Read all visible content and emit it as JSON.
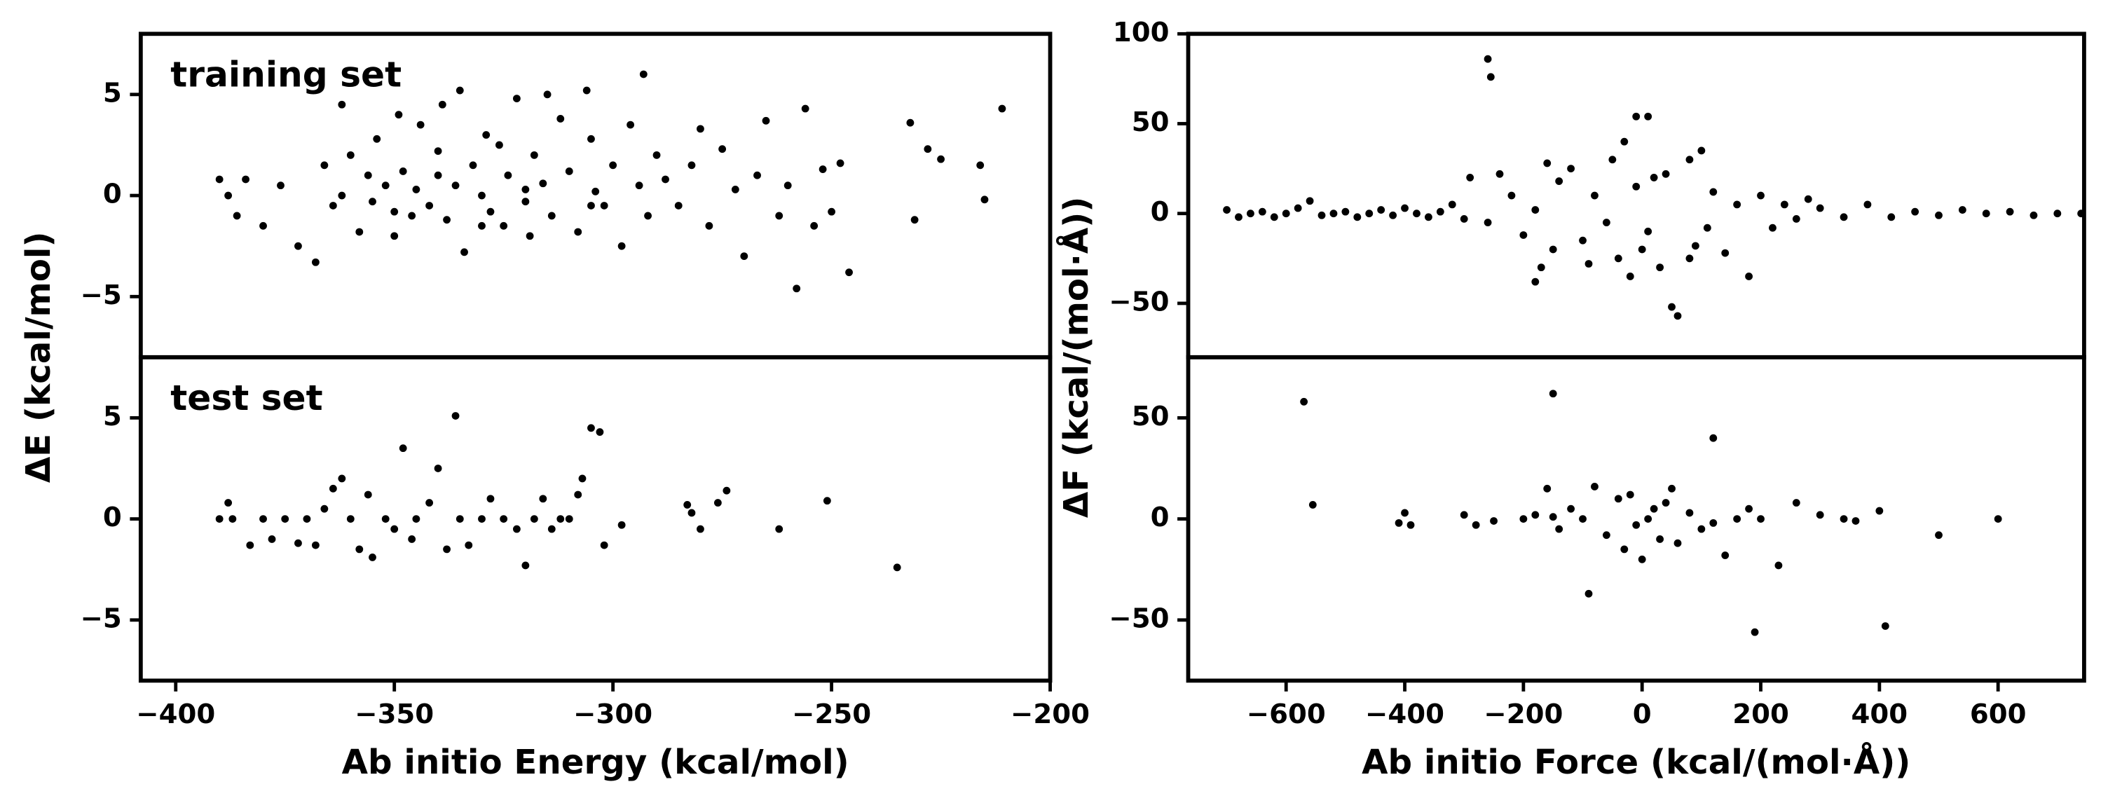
{
  "chart_data": [
    {
      "type": "scatter",
      "annotation": "training set",
      "ylabel": "ΔE (kcal/mol)",
      "xlim": [
        -408,
        -200
      ],
      "ylim": [
        -8,
        8
      ],
      "yticks": [
        5,
        0,
        {
          "value": -5,
          "label": "−5"
        }
      ],
      "color": "#000000",
      "x": [
        -390,
        -388,
        -386,
        -384,
        -380,
        -376,
        -372,
        -368,
        -366,
        -364,
        -362,
        -360,
        -358,
        -356,
        -355,
        -354,
        -352,
        -350,
        -349,
        -348,
        -346,
        -345,
        -344,
        -342,
        -340,
        -339,
        -338,
        -336,
        -335,
        -334,
        -332,
        -330,
        -329,
        -328,
        -326,
        -325,
        -324,
        -322,
        -320,
        -319,
        -318,
        -316,
        -315,
        -314,
        -312,
        -310,
        -308,
        -306,
        -305,
        -304,
        -302,
        -300,
        -298,
        -296,
        -294,
        -292,
        -290,
        -288,
        -285,
        -282,
        -280,
        -278,
        -275,
        -272,
        -270,
        -267,
        -265,
        -262,
        -260,
        -258,
        -256,
        -254,
        -252,
        -250,
        -248,
        -246,
        -232,
        -231,
        -228,
        -225,
        -216,
        -215,
        -211,
        -362,
        -350,
        -340,
        -330,
        -320,
        -305,
        -293
      ],
      "y": [
        0.8,
        0,
        -1,
        0.8,
        -1.5,
        0.5,
        -2.5,
        -3.3,
        1.5,
        -0.5,
        4.5,
        2,
        -1.8,
        1,
        -0.3,
        2.8,
        0.5,
        -2,
        4,
        1.2,
        -1,
        0.3,
        3.5,
        -0.5,
        2.2,
        4.5,
        -1.2,
        0.5,
        5.2,
        -2.8,
        1.5,
        0,
        3,
        -0.8,
        2.5,
        -1.5,
        1,
        4.8,
        -0.3,
        -2,
        2,
        0.6,
        5,
        -1,
        3.8,
        1.2,
        -1.8,
        5.2,
        2.8,
        0.2,
        -0.5,
        1.5,
        -2.5,
        3.5,
        0.5,
        -1,
        2,
        0.8,
        -0.5,
        1.5,
        3.3,
        -1.5,
        2.3,
        0.3,
        -3,
        1,
        3.7,
        -1,
        0.5,
        -4.6,
        4.3,
        -1.5,
        1.3,
        -0.8,
        1.6,
        -3.8,
        3.6,
        -1.2,
        2.3,
        1.8,
        1.5,
        -0.2,
        4.3,
        0,
        -0.8,
        1,
        -1.5,
        0.3,
        -0.5,
        6
      ]
    },
    {
      "type": "scatter",
      "annotation": "test set",
      "xlabel": "Ab initio Energy (kcal/mol)",
      "xlim": [
        -408,
        -200
      ],
      "ylim": [
        -8,
        8
      ],
      "xticks": [
        {
          "value": -400,
          "label": "−400"
        },
        {
          "value": -350,
          "label": "−350"
        },
        {
          "value": -300,
          "label": "−300"
        },
        {
          "value": -250,
          "label": "−250"
        },
        {
          "value": -200,
          "label": "−200"
        }
      ],
      "yticks": [
        5,
        0,
        {
          "value": -5,
          "label": "−5"
        }
      ],
      "color": "#000000",
      "x": [
        -390,
        -388,
        -387,
        -383,
        -380,
        -378,
        -375,
        -372,
        -370,
        -368,
        -366,
        -364,
        -362,
        -360,
        -358,
        -356,
        -355,
        -352,
        -350,
        -348,
        -346,
        -345,
        -342,
        -340,
        -338,
        -336,
        -335,
        -333,
        -330,
        -328,
        -325,
        -322,
        -320,
        -318,
        -316,
        -314,
        -312,
        -310,
        -308,
        -307,
        -305,
        -303,
        -302,
        -298,
        -283,
        -282,
        -280,
        -276,
        -274,
        -262,
        -251,
        -235
      ],
      "y": [
        0,
        0.8,
        0,
        -1.3,
        0,
        -1,
        0,
        -1.2,
        0,
        -1.3,
        0.5,
        1.5,
        2,
        0,
        -1.5,
        1.2,
        -1.9,
        0,
        -0.5,
        3.5,
        -1,
        0,
        0.8,
        2.5,
        -1.5,
        5.1,
        0,
        -1.3,
        0,
        1,
        0,
        -0.5,
        -2.3,
        0,
        1,
        -0.5,
        0,
        0,
        1.2,
        2,
        4.5,
        4.3,
        -1.3,
        -0.3,
        0.7,
        0.3,
        -0.5,
        0.8,
        1.4,
        -0.5,
        0.9,
        -2.4
      ]
    },
    {
      "type": "scatter",
      "ylabel": "ΔF (kcal/(mol·Å))",
      "xlim": [
        -765,
        745
      ],
      "ylim": [
        -80,
        100
      ],
      "yticks": [
        100,
        50,
        0,
        {
          "value": -50,
          "label": "−50"
        }
      ],
      "color": "#000000",
      "x": [
        -700,
        -680,
        -660,
        -640,
        -620,
        -600,
        -580,
        -560,
        -540,
        -520,
        -500,
        -480,
        -460,
        -440,
        -420,
        -400,
        -380,
        -360,
        -340,
        -320,
        -300,
        -290,
        -260,
        -240,
        -220,
        -200,
        -180,
        -170,
        -160,
        -150,
        -140,
        -120,
        -100,
        -90,
        -80,
        -60,
        -50,
        -40,
        -30,
        -20,
        -10,
        0,
        10,
        20,
        30,
        40,
        50,
        60,
        80,
        90,
        100,
        110,
        120,
        140,
        160,
        180,
        200,
        220,
        240,
        260,
        280,
        300,
        340,
        380,
        420,
        460,
        500,
        540,
        580,
        620,
        660,
        700,
        740,
        -260,
        -255,
        -10,
        10,
        80,
        -180
      ],
      "y": [
        2,
        -2,
        0,
        1,
        -2,
        0,
        3,
        7,
        -1,
        0,
        1,
        -2,
        0,
        2,
        -1,
        3,
        0,
        -2,
        1,
        5,
        -3,
        20,
        -5,
        22,
        10,
        -12,
        -38,
        -30,
        28,
        -20,
        18,
        25,
        -15,
        -28,
        10,
        -5,
        30,
        -25,
        40,
        -35,
        54,
        -20,
        54,
        20,
        -30,
        22,
        -52,
        -57,
        30,
        -18,
        35,
        -8,
        12,
        -22,
        5,
        -35,
        10,
        -8,
        5,
        -3,
        8,
        3,
        -2,
        5,
        -2,
        1,
        -1,
        2,
        0,
        1,
        -1,
        0,
        0,
        86,
        76,
        15,
        -10,
        -25,
        2
      ]
    },
    {
      "type": "scatter",
      "xlabel": "Ab initio Force (kcal/(mol·Å))",
      "xlim": [
        -765,
        745
      ],
      "ylim": [
        -80,
        80
      ],
      "xticks": [
        {
          "value": -600,
          "label": "−600"
        },
        {
          "value": -400,
          "label": "−400"
        },
        {
          "value": -200,
          "label": "−200"
        },
        0,
        200,
        400,
        600
      ],
      "yticks": [
        50,
        0,
        {
          "value": -50,
          "label": "−50"
        }
      ],
      "color": "#000000",
      "x": [
        -570,
        -555,
        -410,
        -400,
        -390,
        -300,
        -280,
        -250,
        -200,
        -180,
        -160,
        -150,
        -140,
        -120,
        -100,
        -90,
        -80,
        -60,
        -40,
        -30,
        -20,
        -10,
        0,
        10,
        20,
        30,
        40,
        50,
        60,
        80,
        100,
        120,
        140,
        160,
        180,
        190,
        200,
        230,
        260,
        300,
        340,
        360,
        400,
        410,
        500,
        600,
        -150,
        120
      ],
      "y": [
        58,
        7,
        -2,
        3,
        -3,
        2,
        -3,
        -1,
        0,
        2,
        15,
        62,
        -5,
        5,
        0,
        -37,
        16,
        -8,
        10,
        -15,
        12,
        -3,
        -20,
        0,
        5,
        -10,
        8,
        15,
        -12,
        3,
        -5,
        40,
        -18,
        0,
        5,
        -56,
        0,
        -23,
        8,
        2,
        0,
        -1,
        4,
        -53,
        -8,
        0,
        1,
        -2
      ]
    }
  ]
}
